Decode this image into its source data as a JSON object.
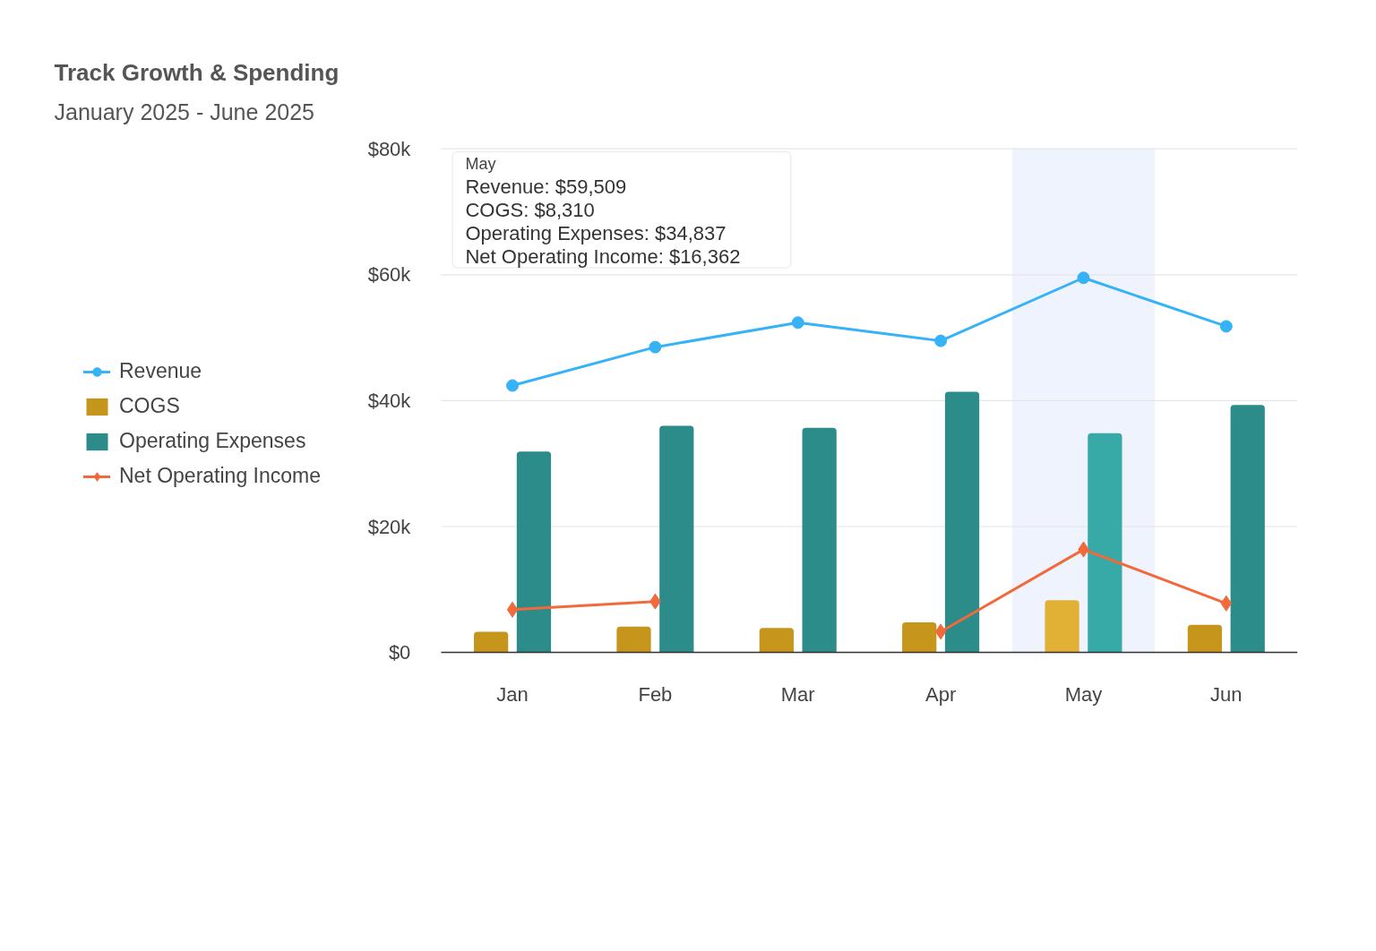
{
  "chart_data": {
    "type": "bar",
    "title": "Track Growth & Spending",
    "subtitle": "January 2025 - June 2025",
    "categories": [
      "Jan",
      "Feb",
      "Mar",
      "Apr",
      "May",
      "Jun"
    ],
    "series": [
      {
        "name": "Revenue",
        "type": "line",
        "marker": "circle",
        "color": "#36b2f6",
        "values": [
          42400,
          48500,
          52400,
          49500,
          59509,
          51800
        ]
      },
      {
        "name": "COGS",
        "colors": [
          "#c6951b",
          "#c6951b",
          "#c6951b",
          "#c6951b",
          "#e0b134",
          "#c6951b"
        ],
        "values": [
          3300,
          4100,
          3900,
          4800,
          8310,
          4400
        ]
      },
      {
        "name": "Operating Expenses",
        "colors": [
          "#2b8c89",
          "#2b8c89",
          "#2b8c89",
          "#2b8c89",
          "#37a9a6",
          "#2b8c89"
        ],
        "values": [
          31900,
          36000,
          35700,
          41400,
          34837,
          39300
        ]
      },
      {
        "name": "Net Operating Income",
        "type": "line",
        "marker": "diamond",
        "color": "#f26a3b",
        "values": [
          6800,
          8100,
          null,
          3300,
          16362,
          7800
        ]
      }
    ],
    "ylim": [
      0,
      80000
    ],
    "yticks": [
      {
        "value": 0,
        "label": "$0"
      },
      {
        "value": 20000,
        "label": "$20k"
      },
      {
        "value": 40000,
        "label": "$40k"
      },
      {
        "value": 60000,
        "label": "$60k"
      },
      {
        "value": 80000,
        "label": "$80k"
      }
    ],
    "grid": "y",
    "legend": "left",
    "bands": [
      {
        "axis": "x",
        "from": "May",
        "to": "May",
        "color": "#eef3fd"
      }
    ],
    "annotations": [
      "May",
      "Revenue: $59,509",
      "COGS: $8,310",
      "Operating Expenses: $34,837",
      "Net Operating Income: $16,362"
    ]
  }
}
